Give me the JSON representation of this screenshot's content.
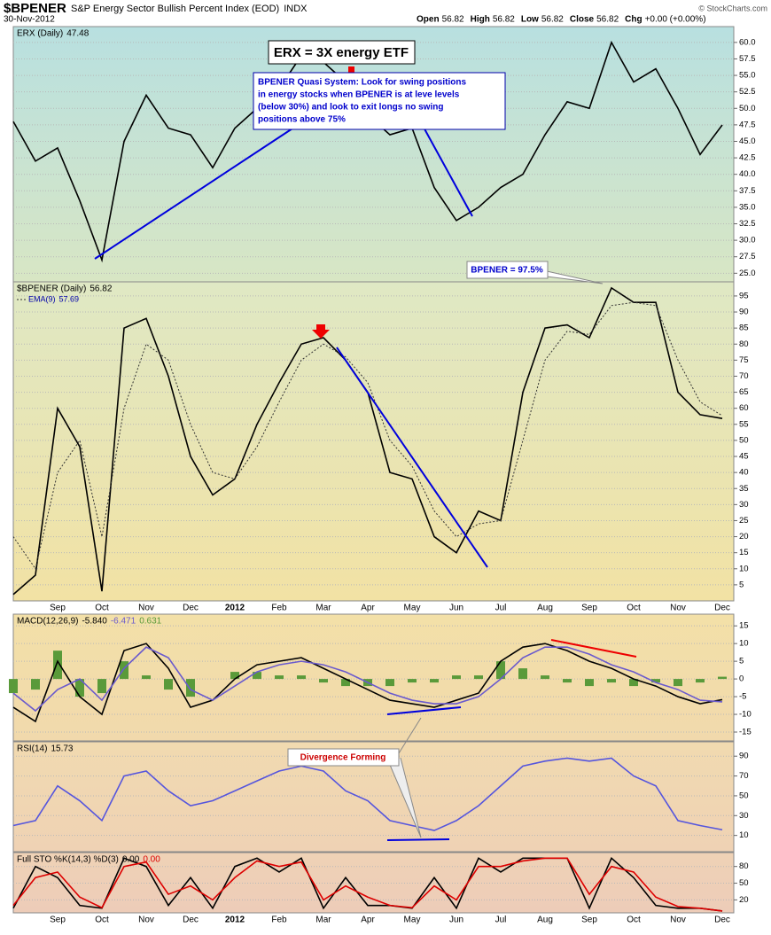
{
  "header": {
    "symbol": "$BPENER",
    "name": "S&P Energy Sector Bullish Percent Index (EOD)",
    "exchange": "INDX",
    "date": "30-Nov-2012",
    "quote": [
      {
        "label": "Open",
        "value": 56.82
      },
      {
        "label": "High",
        "value": 56.82
      },
      {
        "label": "Low",
        "value": 56.82
      },
      {
        "label": "Close",
        "value": 56.82
      },
      {
        "label": "Chg",
        "value": "+0.00 (+0.00%)"
      }
    ],
    "credit": "© StockCharts.com"
  },
  "chart_data": [
    {
      "type": "line",
      "title": "ERX (Daily)",
      "last": 47.48,
      "series": [
        {
          "color": "#000000",
          "values": [
            48,
            42,
            44,
            36,
            27,
            45,
            52,
            47,
            46,
            41,
            47,
            50,
            53,
            58,
            57,
            54,
            49,
            46,
            47,
            38,
            33,
            35,
            38,
            40,
            46,
            51,
            50,
            60,
            54,
            56,
            50,
            43,
            47.48
          ]
        }
      ],
      "ylim": [
        23.7,
        62.4
      ],
      "yticks": [
        {
          "value": 25,
          "label": "25.0"
        },
        27.5,
        {
          "value": 30,
          "label": "30.0"
        },
        32.5,
        {
          "value": 35,
          "label": "35.0"
        },
        37.5,
        {
          "value": 40,
          "label": "40.0"
        },
        42.5,
        {
          "value": 45,
          "label": "45.0"
        },
        47.5,
        {
          "value": 50,
          "label": "50.0"
        },
        52.5,
        {
          "value": 55,
          "label": "55.0"
        },
        57.5,
        {
          "value": 60,
          "label": "60.0"
        }
      ],
      "grid": true,
      "annotations": [
        "ERX = 3X energy ETF",
        "BPENER Quasi System:  Look for swing positions",
        "in energy stocks when BPENER is at leve levels",
        "(below 30%) and look to exit longs no swing",
        "positions above 75%"
      ]
    },
    {
      "type": "line",
      "title": "$BPENER (Daily)",
      "last": 56.82,
      "categories": [
        null,
        null,
        "Sep",
        null,
        "Oct",
        null,
        "Nov",
        null,
        "Dec",
        null,
        "2012",
        null,
        "Feb",
        null,
        "Mar",
        null,
        "Apr",
        null,
        "May",
        null,
        "Jun",
        null,
        "Jul",
        null,
        "Aug",
        null,
        "Sep",
        null,
        "Oct",
        null,
        "Nov",
        null,
        "Dec"
      ],
      "series": [
        {
          "color": "#000000",
          "values": [
            2,
            8,
            60,
            48,
            3,
            85,
            88,
            70,
            45,
            33,
            38,
            55,
            68,
            80,
            82,
            75,
            65,
            40,
            38,
            20,
            15,
            28,
            25,
            65,
            85,
            86,
            82,
            97.5,
            93,
            93,
            65,
            58,
            56.82
          ]
        },
        {
          "name": "EMA(9)",
          "last": 57.69,
          "color": "#333333",
          "dash": true,
          "values": [
            20,
            10,
            40,
            50,
            20,
            60,
            80,
            75,
            55,
            40,
            38,
            48,
            62,
            75,
            80,
            76,
            68,
            50,
            42,
            28,
            20,
            24,
            25,
            50,
            75,
            84,
            83,
            92,
            93,
            92,
            75,
            62,
            57.69
          ]
        }
      ],
      "ylim": [
        0,
        99.4
      ],
      "yticks": [
        5,
        10,
        15,
        20,
        25,
        30,
        35,
        40,
        45,
        50,
        55,
        60,
        65,
        70,
        75,
        80,
        85,
        90,
        95
      ],
      "grid": true,
      "annotations": [
        "BPENER = 97.5%"
      ]
    },
    {
      "type": "line",
      "title": "MACD(12,26,9)",
      "readout": [
        "-5.840",
        "-6.471",
        "0.631"
      ],
      "series": [
        {
          "color": "#000000",
          "values": [
            -8,
            -12,
            5,
            -5,
            -10,
            8,
            10,
            3,
            -8,
            -6,
            0,
            4,
            5,
            6,
            3,
            0,
            -3,
            -6,
            -7,
            -8,
            -6,
            -4,
            5,
            9,
            10,
            8,
            5,
            3,
            0,
            -2,
            -5,
            -7,
            -5.84
          ]
        },
        {
          "color": "#6a5acd",
          "values": [
            -4,
            -9,
            -3,
            0,
            -6,
            3,
            9,
            6,
            -3,
            -6,
            -2,
            2,
            4,
            5,
            4,
            2,
            -1,
            -4,
            -6,
            -7,
            -7,
            -5,
            0,
            6,
            9,
            9,
            7,
            4,
            2,
            -1,
            -3,
            -6,
            -6.471
          ]
        },
        {
          "color": "#5a9a3a",
          "mark": "bar",
          "values": [
            -4,
            -3,
            8,
            -5,
            -4,
            5,
            1,
            -3,
            -5,
            0,
            2,
            2,
            1,
            1,
            -1,
            -2,
            -2,
            -2,
            -1,
            -1,
            1,
            1,
            5,
            3,
            1,
            -1,
            -2,
            -1,
            -2,
            -1,
            -2,
            -1,
            0.631
          ]
        }
      ],
      "ylim": [
        -17.5,
        18.3
      ],
      "yticks": [
        -15,
        -10,
        -5,
        0,
        5,
        10,
        15
      ],
      "grid": true
    },
    {
      "type": "line",
      "title": "RSI(14)",
      "last": 15.73,
      "series": [
        {
          "color": "#5555dd",
          "values": [
            20,
            25,
            60,
            45,
            25,
            70,
            75,
            55,
            40,
            45,
            55,
            65,
            75,
            80,
            75,
            55,
            45,
            25,
            20,
            15,
            25,
            40,
            60,
            80,
            85,
            88,
            85,
            88,
            70,
            60,
            25,
            20,
            15.73
          ]
        }
      ],
      "ylim": [
        -6.4,
        104.5
      ],
      "yticks": [
        10,
        30,
        50,
        70,
        90
      ],
      "grid": true,
      "annotations": [
        "Divergence Forming"
      ]
    },
    {
      "type": "line",
      "title": "Full STO %K(14,3) %D(3)",
      "readout": [
        "0.00",
        "0.00"
      ],
      "categories": [
        null,
        null,
        "Sep",
        null,
        "Oct",
        null,
        "Nov",
        null,
        "Dec",
        null,
        "2012",
        null,
        "Feb",
        null,
        "Mar",
        null,
        "Apr",
        null,
        "May",
        null,
        "Jun",
        null,
        "Jul",
        null,
        "Aug",
        null,
        "Sep",
        null,
        "Oct",
        null,
        "Nov",
        null,
        "Dec"
      ],
      "series": [
        {
          "color": "#000000",
          "values": [
            5,
            80,
            60,
            10,
            5,
            95,
            80,
            10,
            60,
            5,
            80,
            95,
            70,
            95,
            5,
            60,
            10,
            10,
            5,
            60,
            5,
            95,
            70,
            95,
            95,
            95,
            5,
            95,
            60,
            10,
            5,
            5,
            0
          ]
        },
        {
          "color": "#dd0000",
          "values": [
            10,
            60,
            70,
            25,
            6,
            80,
            88,
            30,
            45,
            20,
            60,
            90,
            80,
            88,
            20,
            45,
            25,
            10,
            6,
            45,
            20,
            80,
            80,
            90,
            95,
            95,
            30,
            80,
            70,
            25,
            8,
            5,
            0
          ]
        }
      ],
      "ylim": [
        -3.3,
        105
      ],
      "yticks": [
        20,
        50,
        80
      ],
      "grid": true
    }
  ]
}
